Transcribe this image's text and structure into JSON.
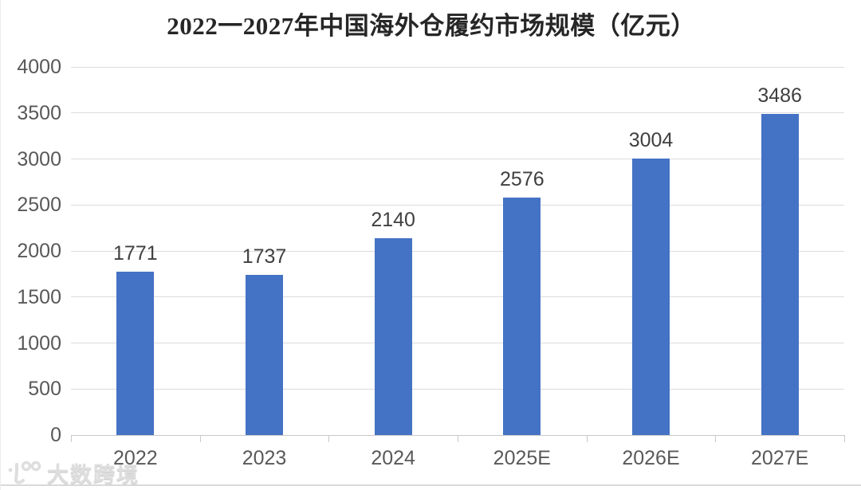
{
  "chart_data": {
    "type": "bar",
    "title": "2022一2027年中国海外仓履约市场规模（亿元）",
    "categories": [
      "2022",
      "2023",
      "2024",
      "2025E",
      "2026E",
      "2027E"
    ],
    "values": [
      1771,
      1737,
      2140,
      2576,
      3004,
      3486
    ],
    "xlabel": "",
    "ylabel": "",
    "ylim": [
      0,
      4000
    ],
    "yticks": [
      0,
      500,
      1000,
      1500,
      2000,
      2500,
      3000,
      3500,
      4000
    ],
    "grid": true,
    "legend": "none",
    "bar_color": "#4472C4",
    "gridline_color": "#dcdcdc",
    "axis_label_color": "#595959",
    "data_label_color": "#404040",
    "title_color": "#262626"
  },
  "watermark": {
    "logo": "100-smile-logo",
    "text": "大数跨境"
  }
}
